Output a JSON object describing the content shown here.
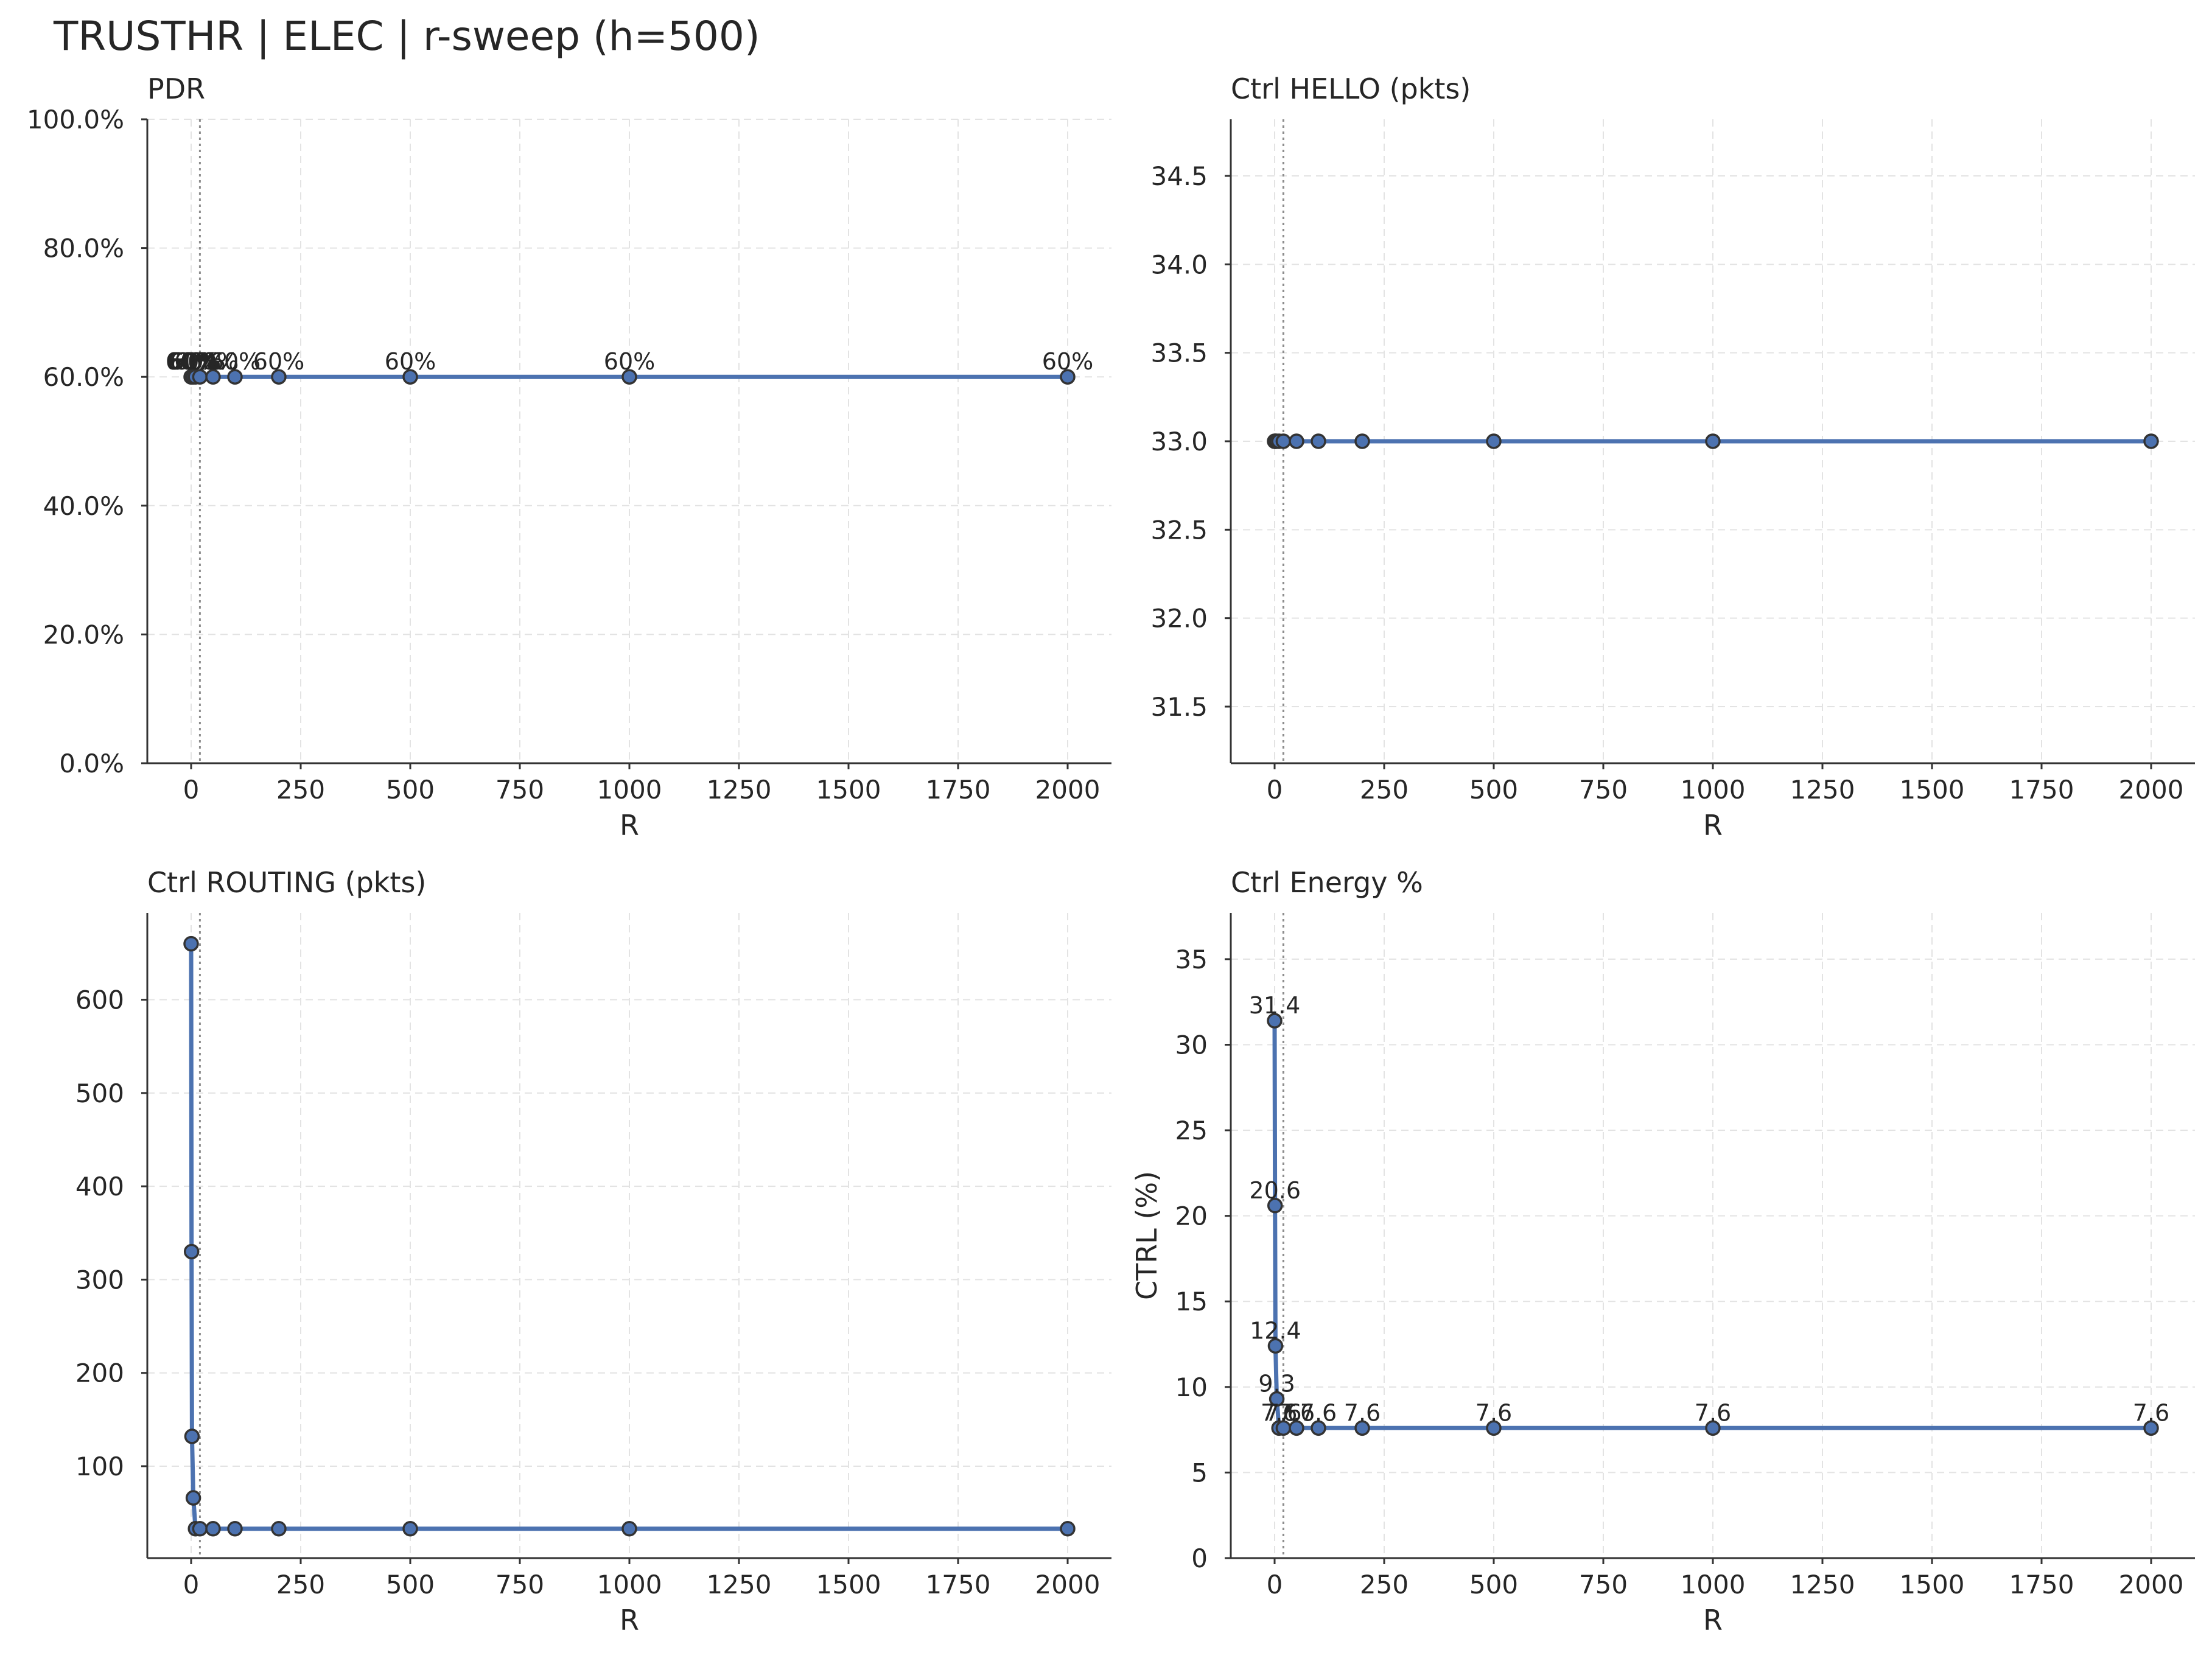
{
  "figure": {
    "title": "TRUSTHR | ELEC | r-sweep (h=500)",
    "line_color": "#4c72b0",
    "marker_edge_color": "#333333",
    "reference_line_style": "dotted gray"
  },
  "chart_data": [
    {
      "type": "line",
      "title": "PDR",
      "xlabel": "R",
      "ylabel": "",
      "xlim": [
        -100,
        2100
      ],
      "ylim": [
        0,
        1.0
      ],
      "x_ticks": [
        0,
        250,
        500,
        750,
        1000,
        1250,
        1500,
        1750,
        2000
      ],
      "y_ticks": [
        0,
        0.2,
        0.4,
        0.6,
        0.8,
        1.0
      ],
      "y_tick_labels": [
        "0.0%",
        "20.0%",
        "40.0%",
        "60.0%",
        "80.0%",
        "100.0%"
      ],
      "reference_x": 20,
      "grid": true,
      "series": [
        {
          "x": [
            0,
            1,
            2,
            5,
            10,
            20,
            50,
            100,
            200,
            500,
            1000,
            2000
          ],
          "y": [
            0.6,
            0.6,
            0.6,
            0.6,
            0.6,
            0.6,
            0.6,
            0.6,
            0.6,
            0.6,
            0.6,
            0.6
          ],
          "labels": [
            "60%",
            "60%",
            "60%",
            "60%",
            "60%",
            "60%",
            "60%",
            "60%",
            "60%",
            "60%",
            "60%",
            "60%"
          ]
        }
      ]
    },
    {
      "type": "line",
      "title": "Ctrl HELLO (pkts)",
      "xlabel": "R",
      "ylabel": "",
      "xlim": [
        -100,
        2100
      ],
      "ylim": [
        31.18,
        34.82
      ],
      "x_ticks": [
        0,
        250,
        500,
        750,
        1000,
        1250,
        1500,
        1750,
        2000
      ],
      "y_ticks": [
        31.5,
        32.0,
        32.5,
        33.0,
        33.5,
        34.0,
        34.5
      ],
      "y_tick_labels": [
        "31.5",
        "32.0",
        "32.5",
        "33.0",
        "33.5",
        "34.0",
        "34.5"
      ],
      "reference_x": 20,
      "grid": true,
      "series": [
        {
          "x": [
            0,
            1,
            2,
            5,
            10,
            20,
            50,
            100,
            200,
            500,
            1000,
            2000
          ],
          "y": [
            33,
            33,
            33,
            33,
            33,
            33,
            33,
            33,
            33,
            33,
            33,
            33
          ]
        }
      ]
    },
    {
      "type": "line",
      "title": "Ctrl ROUTING (pkts)",
      "xlabel": "R",
      "ylabel": "",
      "xlim": [
        -100,
        2100
      ],
      "ylim": [
        1.5,
        693
      ],
      "x_ticks": [
        0,
        250,
        500,
        750,
        1000,
        1250,
        1500,
        1750,
        2000
      ],
      "y_ticks": [
        100,
        200,
        300,
        400,
        500,
        600
      ],
      "y_tick_labels": [
        "100",
        "200",
        "300",
        "400",
        "500",
        "600"
      ],
      "reference_x": 20,
      "grid": true,
      "series": [
        {
          "x": [
            0,
            1,
            2,
            5,
            10,
            20,
            50,
            100,
            200,
            500,
            1000,
            2000
          ],
          "y": [
            660,
            330,
            132,
            66,
            33,
            33,
            33,
            33,
            33,
            33,
            33,
            33
          ]
        }
      ]
    },
    {
      "type": "line",
      "title": "Ctrl Energy %",
      "xlabel": "R",
      "ylabel": "CTRL (%)",
      "xlim": [
        -100,
        2100
      ],
      "ylim": [
        0,
        37.7
      ],
      "x_ticks": [
        0,
        250,
        500,
        750,
        1000,
        1250,
        1500,
        1750,
        2000
      ],
      "y_ticks": [
        0,
        5,
        10,
        15,
        20,
        25,
        30,
        35
      ],
      "y_tick_labels": [
        "0",
        "5",
        "10",
        "15",
        "20",
        "25",
        "30",
        "35"
      ],
      "reference_x": 20,
      "grid": true,
      "series": [
        {
          "x": [
            0,
            1,
            2,
            5,
            10,
            20,
            50,
            100,
            200,
            500,
            1000,
            2000
          ],
          "y": [
            31.4,
            20.6,
            12.4,
            9.3,
            7.6,
            7.6,
            7.6,
            7.6,
            7.6,
            7.6,
            7.6,
            7.6
          ],
          "labels": [
            "31.4",
            "20.6",
            "12.4",
            "9.3",
            "7.6",
            "7.6",
            "7.6",
            "7.6",
            "7.6",
            "7.6",
            "7.6",
            "7.6"
          ]
        }
      ]
    }
  ]
}
